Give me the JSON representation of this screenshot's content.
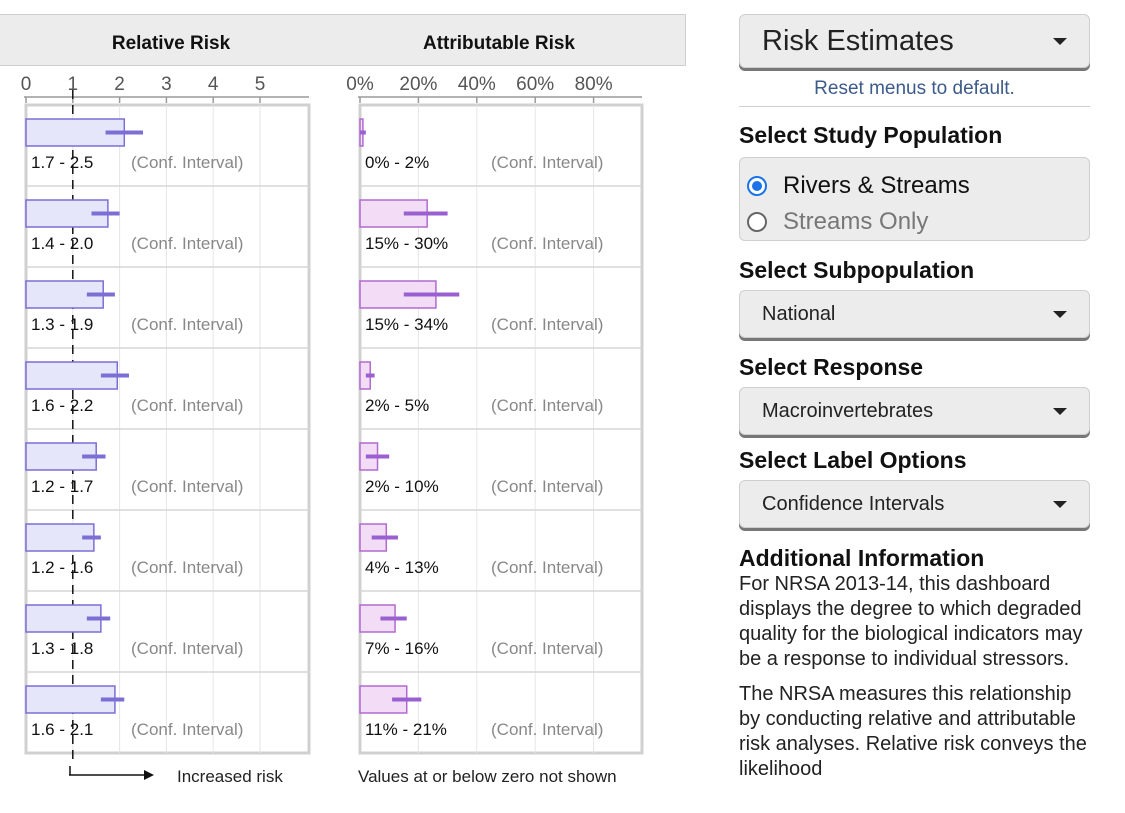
{
  "panels": {
    "relative_risk_title": "Relative Risk",
    "attributable_risk_title": "Attributable Risk",
    "relative_risk_footer": "Increased risk",
    "attributable_risk_footer": "Values at or below zero not shown"
  },
  "chart_data": [
    {
      "type": "bar",
      "title": "Relative Risk",
      "xlim": [
        0,
        6
      ],
      "x_ticks": [
        "0",
        "1",
        "2",
        "3",
        "4",
        "5"
      ],
      "reference_line": 1,
      "values": [
        2.1,
        1.75,
        1.65,
        1.95,
        1.5,
        1.45,
        1.6,
        1.9
      ],
      "ci_low": [
        1.7,
        1.4,
        1.3,
        1.6,
        1.2,
        1.2,
        1.3,
        1.6
      ],
      "ci_high": [
        2.5,
        2.0,
        1.9,
        2.2,
        1.7,
        1.6,
        1.8,
        2.1
      ],
      "row_labels": [
        "1.7 - 2.5",
        "1.4 - 2.0",
        "1.3 - 1.9",
        "1.6 - 2.2",
        "1.2 - 1.7",
        "1.2 - 1.6",
        "1.3 - 1.8",
        "1.6 - 2.1"
      ],
      "row_note": "(Conf. Interval)",
      "colors": {
        "fill": "#e6e6fa",
        "stroke": "#7b6fd6",
        "ci": "#7b6fd6"
      }
    },
    {
      "type": "bar",
      "title": "Attributable Risk",
      "xlim": [
        0,
        97
      ],
      "x_ticks": [
        "0%",
        "20%",
        "40%",
        "60%",
        "80%"
      ],
      "values": [
        1,
        23,
        26,
        3.5,
        6,
        9,
        12,
        16
      ],
      "ci_low": [
        0,
        15,
        15,
        2,
        2,
        4,
        7,
        11
      ],
      "ci_high": [
        2,
        30,
        34,
        5,
        10,
        13,
        16,
        21
      ],
      "row_labels": [
        "0% - 2%",
        "15% - 30%",
        "15% - 34%",
        "2% - 5%",
        "2% - 10%",
        "4% - 13%",
        "7% - 16%",
        "11% - 21%"
      ],
      "row_note": "(Conf. Interval)",
      "colors": {
        "fill": "#f3dcf5",
        "stroke": "#b06ad0",
        "ci": "#9a5fd0"
      }
    }
  ],
  "sidebar": {
    "main_select": "Risk Estimates",
    "reset_link": "Reset menus to default.",
    "study_population": {
      "title": "Select Study Population",
      "options": [
        {
          "label": "Rivers & Streams",
          "checked": true
        },
        {
          "label": "Streams Only",
          "checked": false
        }
      ]
    },
    "subpopulation": {
      "title": "Select Subpopulation",
      "value": "National"
    },
    "response": {
      "title": "Select Response",
      "value": "Macroinvertebrates"
    },
    "label_options": {
      "title": "Select Label Options",
      "value": "Confidence Intervals"
    },
    "additional_info": {
      "title": "Additional Information",
      "paragraph1": "For NRSA 2013-14, this dashboard displays the degree to which degraded quality for the biological indicators may be a response to individual stressors.",
      "paragraph2": "The NRSA measures this relationship by conducting relative and attributable risk analyses. Relative risk conveys the likelihood"
    }
  }
}
